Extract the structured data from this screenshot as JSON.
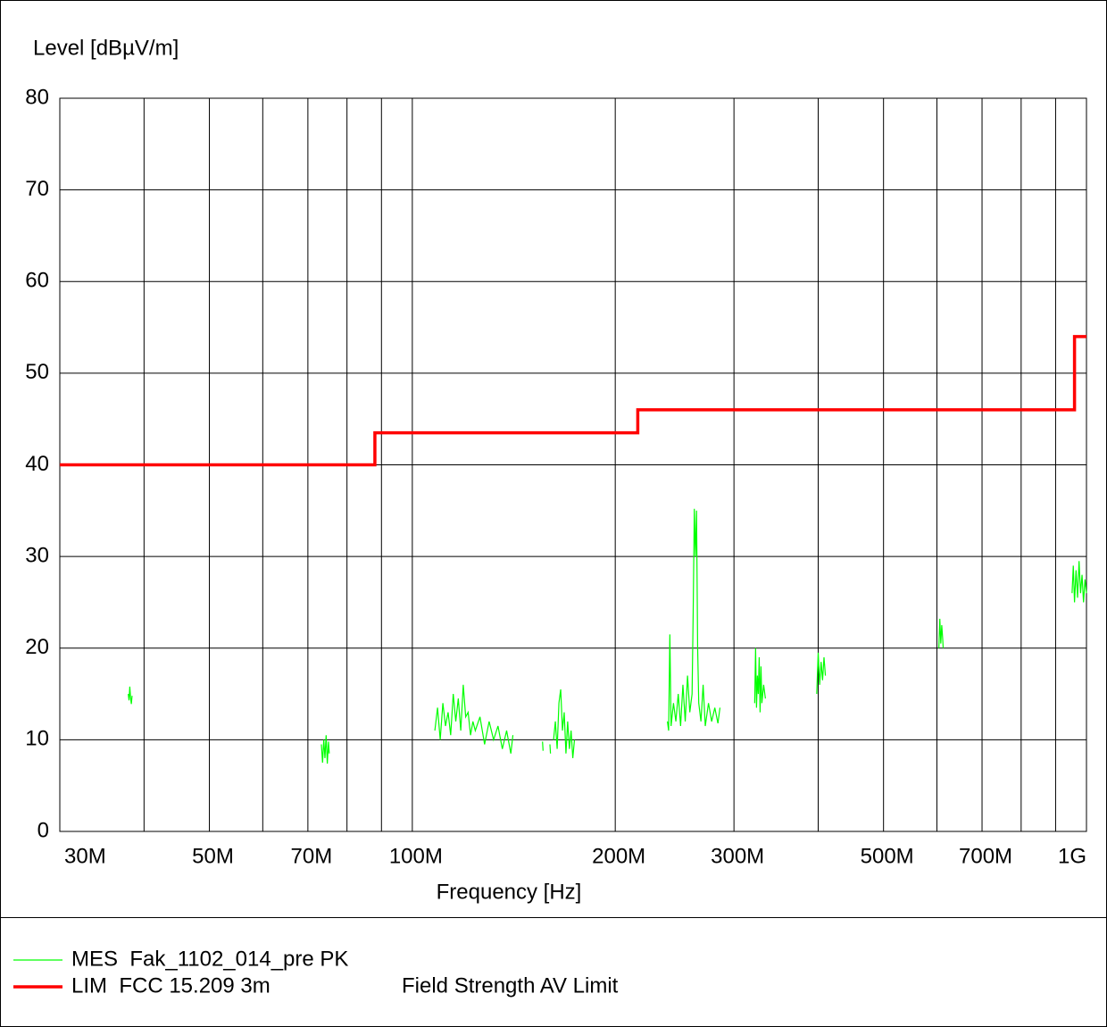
{
  "chart_data": {
    "type": "line",
    "title": "Level [dBµV/m]",
    "x_label": "Frequency [Hz]",
    "x_scale": "log",
    "grid": true,
    "xlim": [
      30000000,
      1000000000
    ],
    "ylim": [
      0,
      80
    ],
    "yticks": [
      0,
      10,
      20,
      30,
      40,
      50,
      60,
      70,
      80
    ],
    "xticks": [
      {
        "value": 30000000,
        "label": "30M"
      },
      {
        "value": 50000000,
        "label": "50M"
      },
      {
        "value": 70000000,
        "label": "70M"
      },
      {
        "value": 100000000,
        "label": "100M"
      },
      {
        "value": 200000000,
        "label": "200M"
      },
      {
        "value": 300000000,
        "label": "300M"
      },
      {
        "value": 500000000,
        "label": "500M"
      },
      {
        "value": 700000000,
        "label": "700M"
      },
      {
        "value": 1000000000,
        "label": "1G"
      }
    ],
    "xminor_ticks": [
      40000000,
      60000000,
      80000000,
      90000000,
      400000000,
      600000000,
      800000000,
      900000000
    ],
    "series": [
      {
        "name": "MES  Fak_1102_014_pre PK",
        "color": "#00ff00",
        "x": [
          37900000,
          38000000,
          38100000,
          38200000,
          38300000,
          38400000,
          null,
          73300000,
          73600000,
          73900000,
          74200000,
          74500000,
          74800000,
          75100000,
          75300000,
          null,
          108000000,
          109000000,
          110000000,
          111000000,
          112000000,
          113000000,
          114000000,
          115000000,
          116000000,
          117000000,
          118000000,
          119000000,
          120000000,
          121000000,
          122000000,
          123000000,
          124000000,
          126000000,
          128000000,
          130000000,
          132000000,
          134000000,
          136000000,
          138000000,
          140000000,
          141000000,
          null,
          156000000,
          156300000,
          null,
          160000000,
          160300000,
          null,
          162000000,
          163000000,
          164000000,
          165000000,
          166000000,
          167000000,
          168000000,
          169000000,
          170000000,
          171000000,
          172000000,
          173000000,
          174000000,
          null,
          239000000,
          240000000,
          241000000,
          242000000,
          244000000,
          246000000,
          248000000,
          250000000,
          252000000,
          254000000,
          256000000,
          258000000,
          260000000,
          261000000,
          262000000,
          263000000,
          264000000,
          265000000,
          266000000,
          268000000,
          270000000,
          272000000,
          275000000,
          278000000,
          281000000,
          284000000,
          286000000,
          null,
          322000000,
          323000000,
          324000000,
          325000000,
          326000000,
          327000000,
          328000000,
          329000000,
          330000000,
          332000000,
          334000000,
          null,
          398000000,
          400000000,
          402000000,
          404000000,
          406000000,
          408000000,
          410000000,
          null,
          604000000,
          606000000,
          608000000,
          610000000,
          612000000,
          613000000,
          null,
          952000000,
          956000000,
          960000000,
          965000000,
          970000000,
          975000000,
          980000000,
          985000000,
          990000000,
          995000000,
          1000000000
        ],
        "values": [
          15,
          14.3,
          15.8,
          14.6,
          13.9,
          14.8,
          null,
          9.5,
          7.5,
          10,
          8,
          10.5,
          7.4,
          9.8,
          8.5,
          null,
          11,
          13.5,
          10,
          14,
          11.5,
          13,
          10.5,
          15,
          12,
          14.5,
          11,
          16,
          12.5,
          13,
          10.5,
          12,
          11,
          12.5,
          9.5,
          12,
          10,
          11.5,
          9,
          11,
          8.5,
          10.5,
          null,
          9.8,
          8.8,
          null,
          9.5,
          8.5,
          null,
          10,
          12,
          9,
          14,
          15.5,
          11,
          13,
          8.5,
          12,
          9,
          11,
          8,
          10,
          null,
          12,
          11,
          21.5,
          11.5,
          14,
          12,
          15,
          11.5,
          16,
          12,
          17,
          13,
          15,
          24,
          35.2,
          30,
          35,
          20,
          14,
          12,
          16,
          11.5,
          14,
          12,
          13.5,
          11.8,
          13.5,
          null,
          14,
          20,
          13.5,
          17,
          15,
          19,
          13,
          18,
          14,
          16,
          14.5,
          null,
          15,
          19.5,
          16,
          18.5,
          16.5,
          19,
          17,
          null,
          20,
          23.2,
          20.5,
          22.5,
          21,
          20,
          null,
          26,
          29,
          25,
          28.5,
          25.5,
          29.5,
          26,
          28,
          25,
          27.5,
          26
        ]
      },
      {
        "name": "LIM  FCC 15.209 3m",
        "description": "Field Strength AV Limit",
        "color": "#ff0000",
        "x": [
          30000000,
          88000000,
          88000000,
          216000000,
          216000000,
          960000000,
          960000000,
          1000000000
        ],
        "values": [
          40,
          40,
          43.5,
          43.5,
          46,
          46,
          54,
          54
        ]
      }
    ]
  }
}
